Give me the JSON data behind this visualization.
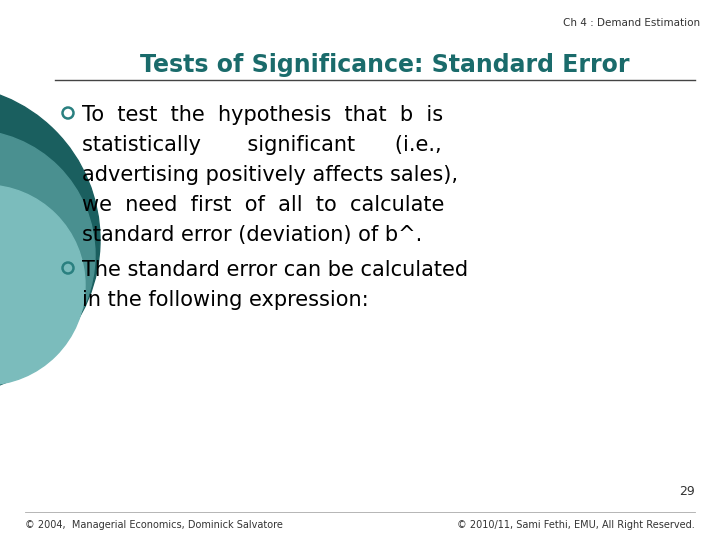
{
  "slide_title": "Tests of Significance: Standard Error",
  "chapter_label": "Ch 4 : Demand Estimation",
  "bullet1_line1": "To  test  the  hypothesis  that  b  is",
  "bullet1_line2": "statistically       significant      (i.e.,",
  "bullet1_line3": "advertising positively affects sales),",
  "bullet1_line4": "we  need  first  of  all  to  calculate",
  "bullet1_line5": "standard error (deviation) of b^.",
  "bullet2_line1": "The standard error can be calculated",
  "bullet2_line2": "in the following expression:",
  "page_number": "29",
  "footer_left": "© 2004,  Managerial Economics, Dominick Salvatore",
  "footer_right": "© 2010/11, Sami Fethi, EMU, All Right Reserved.",
  "title_color": "#1a6b6b",
  "background_color": "#ffffff",
  "bullet_color": "#000000",
  "bullet_circle_color": "#2a8080",
  "dark_circle_color": "#1a5f5f",
  "mid_circle_color": "#4a9090",
  "light_circle_color": "#7bbcbc",
  "line_color": "#444444",
  "footer_color": "#333333",
  "chapter_color": "#333333"
}
